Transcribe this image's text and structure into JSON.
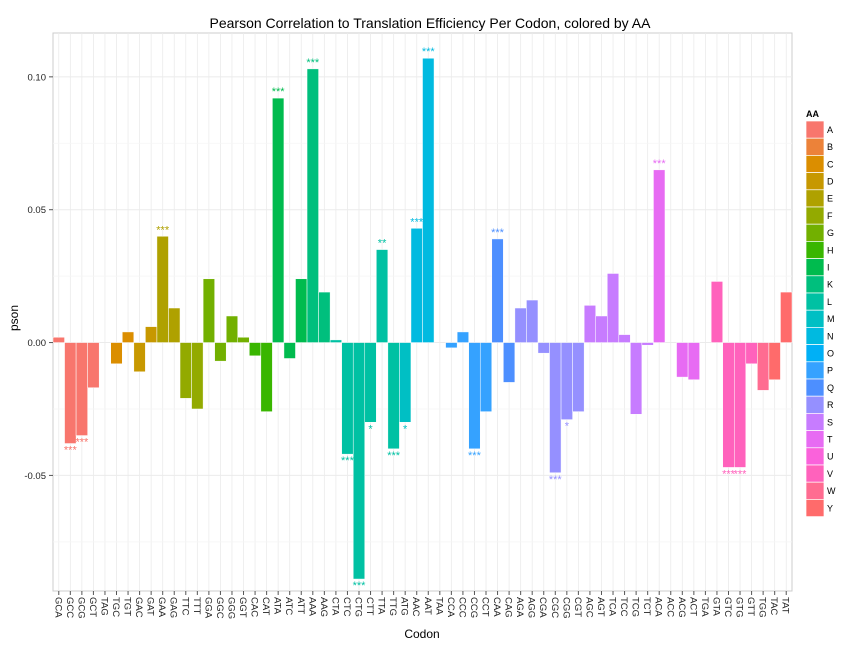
{
  "chart_data": {
    "type": "bar",
    "title": "Pearson Correlation to Translation Efficiency Per Codon, colored by AA",
    "xlabel": "Codon",
    "ylabel": "pson",
    "ylim": [
      -0.0935,
      0.1165
    ],
    "yticks": [
      -0.05,
      0.0,
      0.05,
      0.1
    ],
    "ytick_labels": [
      "-0.05",
      "0.00",
      "0.05",
      "0.10"
    ],
    "grid": true,
    "legend": {
      "title": "AA",
      "position": "right"
    },
    "categories": [
      "GCA",
      "GCC",
      "GCG",
      "GCT",
      "TAG",
      "TGC",
      "TGT",
      "GAC",
      "GAT",
      "GAA",
      "GAG",
      "TTC",
      "TTT",
      "GGA",
      "GGC",
      "GGG",
      "GGT",
      "CAC",
      "CAT",
      "ATA",
      "ATC",
      "ATT",
      "AAA",
      "AAG",
      "CTA",
      "CTC",
      "CTG",
      "CTT",
      "TTA",
      "TTG",
      "ATG",
      "AAC",
      "AAT",
      "TAA",
      "CCA",
      "CCC",
      "CCG",
      "CCT",
      "CAA",
      "CAG",
      "AGA",
      "AGG",
      "CGA",
      "CGC",
      "CGG",
      "CGT",
      "AGC",
      "AGT",
      "TCA",
      "TCC",
      "TCG",
      "TCT",
      "ACA",
      "ACC",
      "ACG",
      "ACT",
      "TGA",
      "GTA",
      "GTC",
      "GTG",
      "GTT",
      "TGG",
      "TAC",
      "TAT"
    ],
    "values": [
      0.002,
      -0.038,
      -0.035,
      -0.017,
      0.0,
      -0.008,
      0.004,
      -0.011,
      0.006,
      0.04,
      0.013,
      -0.021,
      -0.025,
      0.024,
      -0.007,
      0.01,
      0.002,
      -0.005,
      -0.026,
      0.092,
      -0.006,
      0.024,
      0.103,
      0.019,
      0.001,
      -0.042,
      -0.089,
      -0.03,
      0.035,
      -0.04,
      -0.03,
      0.043,
      0.107,
      0.0,
      -0.002,
      0.004,
      -0.04,
      -0.026,
      0.039,
      -0.015,
      0.013,
      0.016,
      -0.004,
      -0.049,
      -0.029,
      -0.026,
      0.014,
      0.01,
      0.026,
      0.003,
      -0.027,
      -0.001,
      0.065,
      0.0,
      -0.013,
      -0.014,
      0.0,
      0.023,
      -0.047,
      -0.047,
      -0.008,
      -0.018,
      -0.014,
      0.019
    ],
    "amino_acid": [
      "A",
      "A",
      "A",
      "A",
      "B",
      "C",
      "C",
      "D",
      "D",
      "E",
      "E",
      "F",
      "F",
      "G",
      "G",
      "G",
      "G",
      "H",
      "H",
      "I",
      "I",
      "I",
      "K",
      "K",
      "L",
      "L",
      "L",
      "L",
      "L",
      "L",
      "M",
      "N",
      "N",
      "O",
      "P",
      "P",
      "P",
      "P",
      "Q",
      "Q",
      "R",
      "R",
      "R",
      "R",
      "R",
      "R",
      "S",
      "S",
      "S",
      "S",
      "S",
      "S",
      "T",
      "T",
      "T",
      "T",
      "U",
      "V",
      "V",
      "V",
      "V",
      "W",
      "Y",
      "Y"
    ],
    "annotations": [
      {
        "codon": "GCC",
        "label": "***"
      },
      {
        "codon": "GCG",
        "label": "***"
      },
      {
        "codon": "GAA",
        "label": "***"
      },
      {
        "codon": "ATA",
        "label": "***"
      },
      {
        "codon": "AAA",
        "label": "***"
      },
      {
        "codon": "CTC",
        "label": "***"
      },
      {
        "codon": "CTG",
        "label": "***"
      },
      {
        "codon": "CTT",
        "label": "*"
      },
      {
        "codon": "TTA",
        "label": "**"
      },
      {
        "codon": "TTG",
        "label": "***"
      },
      {
        "codon": "ATG",
        "label": "*"
      },
      {
        "codon": "AAC",
        "label": "***"
      },
      {
        "codon": "AAT",
        "label": "***"
      },
      {
        "codon": "CCG",
        "label": "***"
      },
      {
        "codon": "CAA",
        "label": "***"
      },
      {
        "codon": "CGC",
        "label": "***"
      },
      {
        "codon": "CGG",
        "label": "*"
      },
      {
        "codon": "ACA",
        "label": "***"
      },
      {
        "codon": "GTC",
        "label": "***"
      },
      {
        "codon": "GTG",
        "label": "***"
      }
    ]
  },
  "legend_items": [
    "A",
    "B",
    "C",
    "D",
    "E",
    "F",
    "G",
    "H",
    "I",
    "K",
    "L",
    "M",
    "N",
    "O",
    "P",
    "Q",
    "R",
    "S",
    "T",
    "U",
    "V",
    "W",
    "Y"
  ],
  "colors": {
    "A": "#F8766D",
    "B": "#EC8239",
    "C": "#DB8E00",
    "D": "#C79800",
    "E": "#AFA100",
    "F": "#93AA00",
    "G": "#72B000",
    "H": "#39B600",
    "I": "#00BB4E",
    "K": "#00BF7D",
    "L": "#00C1A3",
    "M": "#00BFC4",
    "N": "#00BAE0",
    "O": "#00B0F6",
    "P": "#35A2FF",
    "Q": "#4D8FFF",
    "R": "#9590FF",
    "S": "#C77CFF",
    "T": "#E76BF3",
    "U": "#FA62DB",
    "V": "#FF62BC",
    "W": "#FF6C91",
    "Y": "#FF6B6B",
    "panel": "#ffffff",
    "grid": "#EBEBEB",
    "gridMinor": "#F5F5F5"
  }
}
